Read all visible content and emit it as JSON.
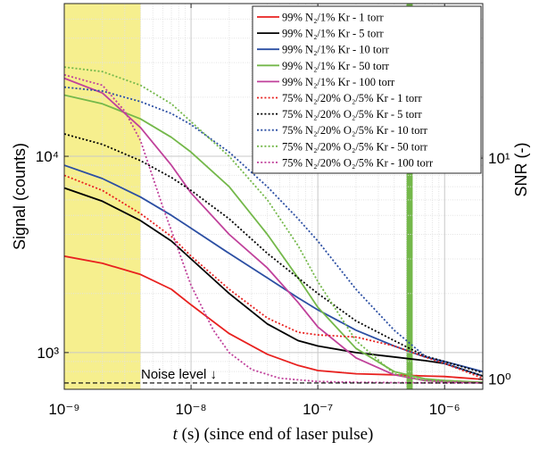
{
  "chart_data": {
    "type": "line",
    "xlabel_italic": "t",
    "xlabel_rest": " (s) (since end of laser pulse)",
    "ylabel": "Signal (counts)",
    "y2label": "SNR (-)",
    "xscale": "log",
    "yscale": "log",
    "xlim": [
      1e-09,
      2e-06
    ],
    "ylim": [
      650,
      60000
    ],
    "y2lim": [
      0.9,
      50
    ],
    "grid": true,
    "legend_position": "top-right",
    "xticks": [
      {
        "value": 1e-09,
        "label": "10⁻⁹"
      },
      {
        "value": 1e-08,
        "label": "10⁻⁸"
      },
      {
        "value": 1e-07,
        "label": "10⁻⁷"
      },
      {
        "value": 1e-06,
        "label": "10⁻⁶"
      }
    ],
    "yticks": [
      {
        "value": 1000,
        "label": "10³"
      },
      {
        "value": 10000,
        "label": "10⁴"
      }
    ],
    "y2ticks": [
      {
        "value": 1,
        "label": "10⁰"
      },
      {
        "value": 10,
        "label": "10¹"
      }
    ],
    "shaded_region": {
      "x0": 1e-09,
      "x1": 4e-09,
      "color": "#f4ec7a"
    },
    "vertical_band": {
      "x0": 5e-07,
      "x1": 5.6e-07,
      "color": "#74b84a"
    },
    "noise_level": {
      "y": 700,
      "label": "Noise level ↓"
    },
    "series": [
      {
        "name": "99% N₂/1% Kr - 1 torr",
        "color": "#e8211f",
        "dash": "solid",
        "x": [
          1e-09,
          2e-09,
          4e-09,
          7e-09,
          1e-08,
          2e-08,
          4e-08,
          7e-08,
          1e-07,
          2e-07,
          4e-07,
          7e-07,
          1e-06,
          2e-06
        ],
        "y": [
          3100,
          2850,
          2500,
          2100,
          1750,
          1250,
          980,
          860,
          810,
          780,
          770,
          760,
          755,
          730
        ]
      },
      {
        "name": "99% N₂/1% Kr - 5 torr",
        "color": "#000000",
        "dash": "solid",
        "x": [
          1e-09,
          2e-09,
          4e-09,
          7e-09,
          1e-08,
          2e-08,
          4e-08,
          7e-08,
          1e-07,
          2e-07,
          4e-07,
          7e-07,
          1e-06,
          2e-06
        ],
        "y": [
          6900,
          5900,
          4700,
          3700,
          3000,
          2000,
          1400,
          1150,
          1080,
          1000,
          950,
          910,
          880,
          760
        ]
      },
      {
        "name": "99% N₂/1% Kr - 10 torr",
        "color": "#2c4fa3",
        "dash": "solid",
        "x": [
          1e-09,
          2e-09,
          4e-09,
          7e-09,
          1e-08,
          2e-08,
          4e-08,
          7e-08,
          1e-07,
          2e-07,
          4e-07,
          7e-07,
          1e-06,
          2e-06
        ],
        "y": [
          9000,
          7700,
          6200,
          5000,
          4300,
          3200,
          2400,
          1900,
          1650,
          1300,
          1080,
          950,
          900,
          800
        ]
      },
      {
        "name": "99% N₂/1% Kr - 50 torr",
        "color": "#74b84a",
        "dash": "solid",
        "x": [
          1e-09,
          2e-09,
          4e-09,
          7e-09,
          1e-08,
          2e-08,
          4e-08,
          7e-08,
          1e-07,
          2e-07,
          4e-07,
          7e-07,
          1e-06,
          2e-06
        ],
        "y": [
          20500,
          18500,
          15500,
          12500,
          10500,
          7000,
          4000,
          2400,
          1700,
          1050,
          800,
          735,
          720,
          705
        ]
      },
      {
        "name": "99% N₂/1% Kr - 100 torr",
        "color": "#c0419b",
        "dash": "solid",
        "x": [
          1e-09,
          2e-09,
          4e-09,
          7e-09,
          1e-08,
          2e-08,
          4e-08,
          7e-08,
          1e-07,
          2e-07,
          4e-07,
          7e-07,
          1e-06,
          2e-06
        ],
        "y": [
          25000,
          21000,
          14000,
          9000,
          6500,
          4000,
          2700,
          1800,
          1350,
          940,
          770,
          720,
          710,
          700
        ]
      },
      {
        "name": "75% N₂/20% O₂/5% Kr - 1 torr",
        "color": "#e8211f",
        "dash": "dotted",
        "x": [
          1e-09,
          2e-09,
          4e-09,
          7e-09,
          1e-08,
          2e-08,
          4e-08,
          7e-08,
          1e-07,
          2e-07,
          4e-07,
          7e-07,
          1e-06,
          2e-06
        ],
        "y": [
          8000,
          6700,
          5100,
          3900,
          3100,
          2100,
          1500,
          1270,
          1230,
          1200,
          1080,
          950,
          880,
          740
        ]
      },
      {
        "name": "75% N₂/20% O₂/5% Kr - 5 torr",
        "color": "#000000",
        "dash": "dotted",
        "x": [
          1e-09,
          2e-09,
          4e-09,
          7e-09,
          1e-08,
          2e-08,
          4e-08,
          7e-08,
          1e-07,
          2e-07,
          4e-07,
          7e-07,
          1e-06,
          2e-06
        ],
        "y": [
          13000,
          11500,
          9500,
          7800,
          6700,
          4800,
          3200,
          2400,
          2000,
          1450,
          1150,
          960,
          900,
          790
        ]
      },
      {
        "name": "75% N₂/20% O₂/5% Kr - 10 torr",
        "color": "#2c4fa3",
        "dash": "dotted",
        "x": [
          1e-09,
          2e-09,
          4e-09,
          7e-09,
          1e-08,
          2e-08,
          4e-08,
          7e-08,
          1e-07,
          2e-07,
          4e-07,
          7e-07,
          1e-06,
          2e-06
        ],
        "y": [
          22500,
          21500,
          19000,
          16500,
          14500,
          10500,
          7000,
          4800,
          3700,
          2100,
          1300,
          960,
          880,
          760
        ]
      },
      {
        "name": "75% N₂/20% O₂/5% Kr - 50 torr",
        "color": "#74b84a",
        "dash": "dotted",
        "x": [
          1e-09,
          2e-09,
          4e-09,
          7e-09,
          1e-08,
          2e-08,
          4e-08,
          7e-08,
          1e-07,
          2e-07,
          4e-07,
          7e-07,
          1e-06,
          2e-06
        ],
        "y": [
          28500,
          27000,
          23000,
          18500,
          15000,
          10000,
          6000,
          3500,
          2300,
          1150,
          780,
          720,
          710,
          700
        ]
      },
      {
        "name": "75% N₂/20% O₂/5% Kr - 100 torr",
        "color": "#c0419b",
        "dash": "dotted",
        "x": [
          1e-09,
          2e-09,
          3e-09,
          4e-09,
          6e-09,
          1e-08,
          1.5e-08,
          2e-08,
          3e-08,
          5e-08,
          1e-07,
          2e-07,
          1e-06,
          2e-06
        ],
        "y": [
          26000,
          23000,
          17000,
          12000,
          5500,
          2200,
          1300,
          1000,
          820,
          740,
          712,
          705,
          700,
          700
        ]
      }
    ]
  }
}
